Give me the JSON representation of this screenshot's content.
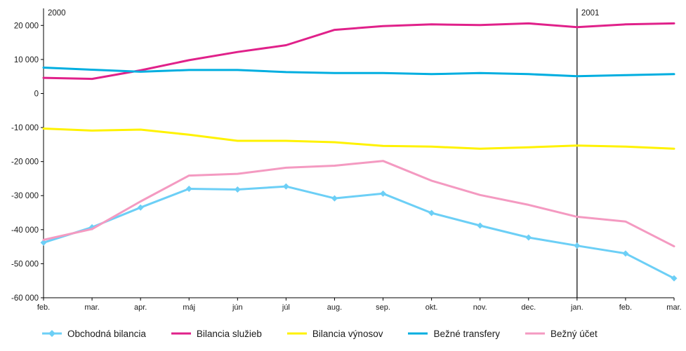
{
  "chart_data": {
    "type": "line",
    "title": "",
    "xlabel": "",
    "ylabel": "",
    "ylim": [
      -60000,
      25000
    ],
    "yticks": [
      20000,
      10000,
      0,
      -10000,
      -20000,
      -30000,
      -40000,
      -50000,
      -60000
    ],
    "ytick_labels": [
      "20 000",
      "10 000",
      "0",
      "-10 000",
      "-20 000",
      "-30 000",
      "-40 000",
      "-50 000",
      "-60 000"
    ],
    "categories": [
      "feb.",
      "mar.",
      "apr.",
      "máj",
      "jún",
      "júl",
      "aug.",
      "sep.",
      "okt.",
      "nov.",
      "dec.",
      "jan.",
      "feb.",
      "mar."
    ],
    "year_markers": [
      {
        "label": "2000",
        "index": 0
      },
      {
        "label": "2001",
        "index": 11
      }
    ],
    "grid": false,
    "legend_position": "bottom",
    "series": [
      {
        "name": "Obchodná bilancia",
        "color": "#6ccff6",
        "marker": "diamond",
        "values": [
          -43800,
          -39300,
          -33500,
          -28000,
          -28200,
          -27300,
          -30800,
          -29400,
          -35100,
          -38800,
          -42300,
          -44700,
          -47000,
          -54300
        ]
      },
      {
        "name": "Bilancia služieb",
        "color": "#e0218a",
        "marker": "none",
        "values": [
          4600,
          4300,
          6800,
          9800,
          12200,
          14200,
          18700,
          19800,
          20300,
          20100,
          20600,
          19500,
          20300,
          20600
        ]
      },
      {
        "name": "Bilancia výnosov",
        "color": "#fff200",
        "marker": "none",
        "values": [
          -10300,
          -10900,
          -10600,
          -12100,
          -13900,
          -13900,
          -14300,
          -15400,
          -15600,
          -16200,
          -15800,
          -15300,
          -15600,
          -16200
        ]
      },
      {
        "name": "Bežné transfery",
        "color": "#00aee0",
        "marker": "none",
        "values": [
          7600,
          7000,
          6400,
          6900,
          6900,
          6300,
          6000,
          6000,
          5700,
          6000,
          5700,
          5100,
          5400,
          5700
        ]
      },
      {
        "name": "Bežný účet",
        "color": "#f49ac1",
        "marker": "none",
        "values": [
          -43000,
          -39800,
          -31700,
          -24100,
          -23600,
          -21800,
          -21200,
          -19800,
          -25600,
          -29800,
          -32700,
          -36200,
          -37600,
          -44900
        ]
      }
    ]
  }
}
